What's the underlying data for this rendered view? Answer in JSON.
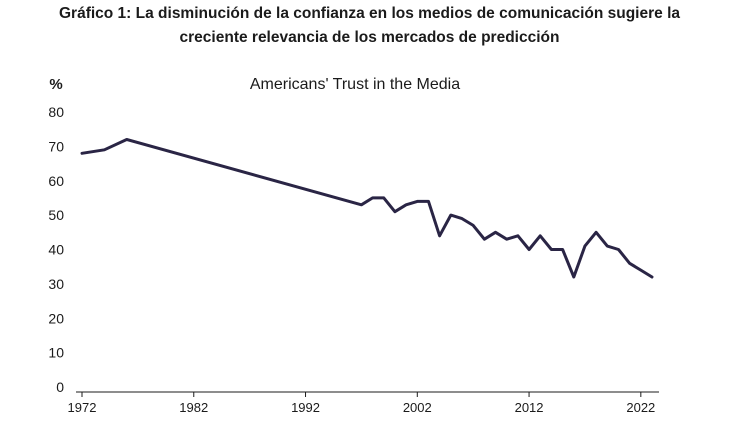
{
  "headline": {
    "line1": "Gráfico 1: La disminución de la confianza en los medios de comunicación sugiere la",
    "line2": "creciente relevancia de los mercados de predicción"
  },
  "chart_data": {
    "type": "line",
    "title": "Americans' Trust in the Media",
    "ylabel": "%",
    "xlabel": "",
    "ylim": [
      0,
      80
    ],
    "y_ticks": [
      0,
      10,
      20,
      30,
      40,
      50,
      60,
      70,
      80
    ],
    "x_ticks": [
      1972,
      1982,
      1992,
      2002,
      2012,
      2022
    ],
    "grid": false,
    "line_color": "#2a2545",
    "series": [
      {
        "x": [
          1972,
          1974,
          1976,
          1997,
          1998,
          1999,
          2000,
          2001,
          2002,
          2003,
          2004,
          2005,
          2006,
          2007,
          2008,
          2009,
          2010,
          2011,
          2012,
          2013,
          2014,
          2015,
          2016,
          2017,
          2018,
          2019,
          2020,
          2021,
          2022,
          2023
        ],
        "y": [
          68,
          69,
          72,
          53,
          55,
          55,
          51,
          53,
          54,
          54,
          44,
          50,
          49,
          47,
          43,
          45,
          43,
          44,
          40,
          44,
          40,
          40,
          32,
          41,
          45,
          41,
          40,
          36,
          34,
          32
        ]
      }
    ]
  }
}
